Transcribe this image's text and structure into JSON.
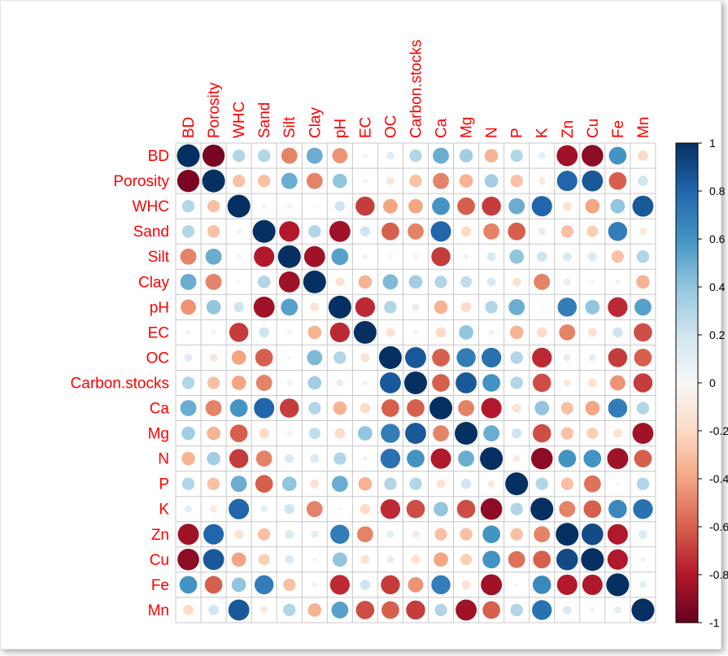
{
  "chart_data": {
    "type": "heatmap",
    "title": "",
    "variables": [
      "BD",
      "Porosity",
      "WHC",
      "Sand",
      "Silt",
      "Clay",
      "pH",
      "EC",
      "OC",
      "Carbon.stocks",
      "Ca",
      "Mg",
      "N",
      "P",
      "K",
      "Zn",
      "Cu",
      "Fe",
      "Mn"
    ],
    "legend": {
      "placement": "right",
      "ticks": [
        "1",
        "0.8",
        "0.6",
        "0.4",
        "0.2",
        "0",
        "-0.2",
        "-0.4",
        "-0.6",
        "-0.8",
        "-1"
      ],
      "range": [
        -1,
        1
      ]
    },
    "colors": {
      "label_text": "#ff0000",
      "grid": "#c8c8c8",
      "scale_low": "#67001f",
      "scale_mid": "#f7f7f7",
      "scale_high": "#053061"
    },
    "matrix": [
      [
        1,
        -0.95,
        0.3,
        0.3,
        -0.5,
        0.5,
        -0.45,
        0.05,
        0.12,
        0.3,
        0.5,
        0.35,
        -0.35,
        0.3,
        0.1,
        -0.85,
        -0.9,
        0.6,
        -0.2
      ],
      [
        -0.95,
        1,
        -0.3,
        -0.3,
        0.5,
        -0.5,
        0.4,
        0.05,
        -0.12,
        -0.3,
        -0.5,
        -0.35,
        0.35,
        -0.3,
        -0.1,
        0.8,
        0.85,
        -0.6,
        0.2
      ],
      [
        0.3,
        -0.3,
        1,
        0.05,
        0.05,
        0.02,
        0.2,
        -0.7,
        -0.4,
        -0.4,
        0.6,
        -0.6,
        -0.7,
        0.5,
        0.8,
        -0.15,
        -0.4,
        0.4,
        0.85
      ],
      [
        0.3,
        -0.3,
        0.05,
        1,
        -0.8,
        0.3,
        -0.85,
        0.2,
        -0.6,
        -0.5,
        0.8,
        -0.2,
        -0.5,
        -0.6,
        0.1,
        -0.3,
        -0.25,
        0.7,
        -0.1
      ],
      [
        -0.5,
        0.5,
        0.05,
        -0.8,
        1,
        -0.85,
        0.55,
        0.05,
        0.03,
        0.05,
        -0.7,
        0.05,
        0.15,
        0.4,
        0.2,
        0.15,
        0.15,
        -0.3,
        0.3
      ],
      [
        0.5,
        -0.5,
        0.02,
        0.3,
        -0.85,
        1,
        -0.15,
        -0.35,
        0.45,
        0.35,
        0.3,
        0.25,
        0.15,
        -0.15,
        -0.5,
        0.1,
        0.03,
        0.05,
        -0.35
      ],
      [
        -0.45,
        0.4,
        0.2,
        -0.85,
        0.55,
        -0.15,
        1,
        -0.75,
        0.3,
        0.1,
        -0.35,
        -0.2,
        0.3,
        0.5,
        0.02,
        0.7,
        0.4,
        -0.75,
        0.55
      ],
      [
        0.05,
        0.05,
        -0.7,
        0.2,
        0.05,
        -0.35,
        -0.75,
        1,
        -0.15,
        0.05,
        -0.2,
        0.4,
        0.05,
        -0.35,
        -0.2,
        -0.5,
        -0.15,
        0.2,
        -0.65
      ],
      [
        0.12,
        -0.12,
        -0.4,
        -0.6,
        0.03,
        0.45,
        0.3,
        -0.15,
        1,
        0.85,
        -0.6,
        0.7,
        0.75,
        0.3,
        -0.75,
        0.1,
        0.1,
        -0.7,
        -0.6
      ],
      [
        0.3,
        -0.3,
        -0.4,
        -0.5,
        0.05,
        0.35,
        0.1,
        0.05,
        0.85,
        1,
        -0.6,
        0.85,
        0.6,
        0.3,
        -0.65,
        -0.1,
        -0.15,
        -0.45,
        -0.7
      ],
      [
        0.5,
        -0.5,
        0.6,
        0.8,
        -0.7,
        0.3,
        -0.35,
        -0.2,
        -0.6,
        -0.6,
        1,
        -0.5,
        -0.8,
        -0.15,
        0.4,
        -0.3,
        -0.4,
        0.7,
        0.3
      ],
      [
        0.35,
        -0.35,
        -0.6,
        -0.2,
        0.05,
        0.25,
        -0.2,
        0.4,
        0.7,
        0.85,
        -0.5,
        1,
        0.5,
        0.2,
        -0.65,
        -0.3,
        -0.25,
        -0.15,
        -0.85
      ],
      [
        -0.35,
        0.35,
        -0.7,
        -0.5,
        0.15,
        0.15,
        0.3,
        0.05,
        0.75,
        0.6,
        -0.8,
        0.5,
        1,
        -0.1,
        -0.9,
        0.6,
        0.6,
        -0.85,
        -0.6
      ],
      [
        0.3,
        -0.3,
        0.5,
        -0.6,
        0.4,
        -0.15,
        0.5,
        -0.35,
        0.3,
        0.3,
        -0.15,
        0.2,
        -0.1,
        1,
        0.3,
        -0.3,
        -0.55,
        0.02,
        0.3
      ],
      [
        0.1,
        -0.1,
        0.8,
        0.1,
        0.2,
        -0.5,
        0.02,
        -0.2,
        -0.75,
        -0.65,
        0.4,
        -0.65,
        -0.9,
        0.3,
        1,
        -0.5,
        -0.6,
        0.65,
        0.75
      ],
      [
        -0.85,
        0.8,
        -0.15,
        -0.3,
        0.15,
        0.1,
        0.7,
        -0.5,
        0.1,
        -0.1,
        -0.3,
        -0.3,
        0.6,
        -0.3,
        -0.5,
        1,
        0.9,
        -0.8,
        0.15
      ],
      [
        -0.9,
        0.85,
        -0.4,
        -0.25,
        0.15,
        0.03,
        0.4,
        -0.15,
        0.1,
        -0.15,
        -0.4,
        -0.25,
        0.6,
        -0.55,
        -0.6,
        0.9,
        1,
        -0.8,
        0.05
      ],
      [
        0.6,
        -0.6,
        0.4,
        0.7,
        -0.3,
        0.05,
        -0.75,
        0.2,
        -0.7,
        -0.45,
        0.7,
        -0.15,
        -0.85,
        0.02,
        0.65,
        -0.8,
        -0.8,
        1,
        0.1
      ],
      [
        -0.2,
        0.2,
        0.85,
        -0.1,
        0.3,
        -0.35,
        0.55,
        -0.65,
        -0.6,
        -0.7,
        0.3,
        -0.85,
        -0.6,
        0.3,
        0.75,
        0.15,
        0.05,
        0.1,
        1
      ]
    ]
  }
}
